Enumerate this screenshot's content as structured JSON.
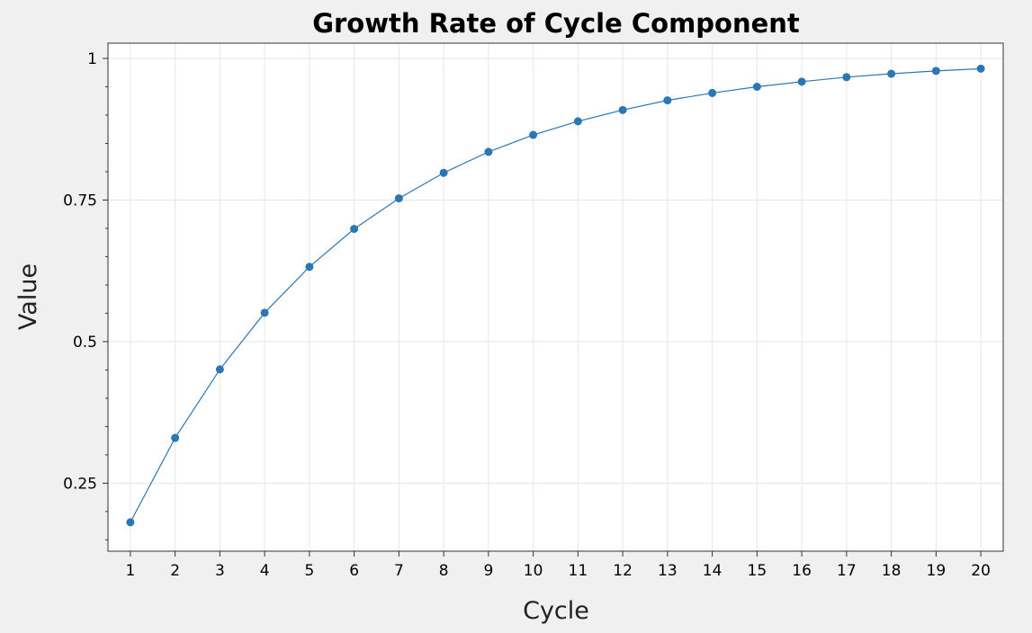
{
  "chart_data": {
    "type": "line",
    "title": "Growth Rate of Cycle Component",
    "xlabel": "Cycle",
    "ylabel": "Value",
    "x": [
      1,
      2,
      3,
      4,
      5,
      6,
      7,
      8,
      9,
      10,
      11,
      12,
      13,
      14,
      15,
      16,
      17,
      18,
      19,
      20
    ],
    "xlim": [
      0.5,
      20.5
    ],
    "ylim": [
      0.13,
      1.027
    ],
    "yticks": [
      0.25,
      0.5,
      0.75,
      1
    ],
    "ytick_labels": [
      "0.25",
      "0.5",
      "0.75",
      "1"
    ],
    "grid": true,
    "series": [
      {
        "values": [
          0.181,
          0.33,
          0.451,
          0.551,
          0.632,
          0.699,
          0.753,
          0.798,
          0.835,
          0.865,
          0.889,
          0.909,
          0.926,
          0.939,
          0.95,
          0.959,
          0.967,
          0.973,
          0.978,
          0.982
        ],
        "color": "#2b77b4"
      }
    ]
  }
}
